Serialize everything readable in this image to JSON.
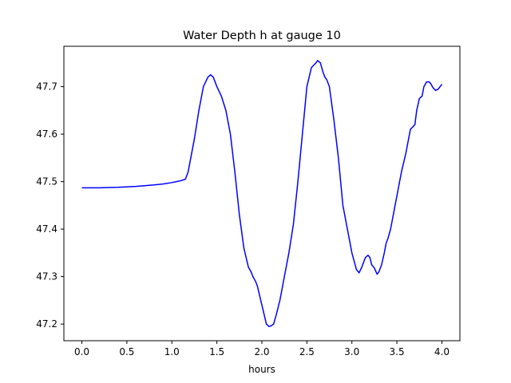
{
  "chart_data": {
    "type": "line",
    "title": "Water Depth h at gauge 10",
    "xlabel": "hours",
    "ylabel": "",
    "xlim": [
      -0.2,
      4.2
    ],
    "ylim": [
      47.165,
      47.785
    ],
    "xticks": [
      0.0,
      0.5,
      1.0,
      1.5,
      2.0,
      2.5,
      3.0,
      3.5,
      4.0
    ],
    "xtick_labels": [
      "0.0",
      "0.5",
      "1.0",
      "1.5",
      "2.0",
      "2.5",
      "3.0",
      "3.5",
      "4.0"
    ],
    "yticks": [
      47.2,
      47.3,
      47.4,
      47.5,
      47.6,
      47.7
    ],
    "ytick_labels": [
      "47.2",
      "47.3",
      "47.4",
      "47.5",
      "47.6",
      "47.7"
    ],
    "grid": false,
    "series": [
      {
        "color": "#0000ff",
        "x": [
          0.0,
          0.2,
          0.4,
          0.6,
          0.8,
          0.9,
          1.0,
          1.05,
          1.1,
          1.15,
          1.18,
          1.2,
          1.25,
          1.3,
          1.35,
          1.4,
          1.43,
          1.46,
          1.5,
          1.55,
          1.6,
          1.65,
          1.7,
          1.75,
          1.8,
          1.85,
          1.88,
          1.9,
          1.93,
          1.95,
          2.0,
          2.05,
          2.08,
          2.1,
          2.13,
          2.16,
          2.2,
          2.25,
          2.3,
          2.35,
          2.4,
          2.45,
          2.5,
          2.55,
          2.6,
          2.62,
          2.65,
          2.68,
          2.7,
          2.72,
          2.75,
          2.8,
          2.85,
          2.9,
          2.95,
          3.0,
          3.05,
          3.08,
          3.11,
          3.13,
          3.15,
          3.18,
          3.2,
          3.22,
          3.25,
          3.28,
          3.3,
          3.33,
          3.36,
          3.38,
          3.4,
          3.43,
          3.46,
          3.5,
          3.55,
          3.6,
          3.65,
          3.7,
          3.72,
          3.75,
          3.78,
          3.8,
          3.83,
          3.86,
          3.88,
          3.9,
          3.93,
          3.96,
          4.0
        ],
        "y": [
          47.487,
          47.487,
          47.488,
          47.49,
          47.493,
          47.495,
          47.498,
          47.5,
          47.502,
          47.505,
          47.52,
          47.54,
          47.59,
          47.65,
          47.7,
          47.72,
          47.725,
          47.72,
          47.7,
          47.68,
          47.65,
          47.6,
          47.52,
          47.43,
          47.36,
          47.32,
          47.31,
          47.3,
          47.29,
          47.28,
          47.24,
          47.2,
          47.195,
          47.196,
          47.2,
          47.22,
          47.25,
          47.3,
          47.35,
          47.41,
          47.5,
          47.6,
          47.7,
          47.74,
          47.75,
          47.755,
          47.75,
          47.73,
          47.72,
          47.715,
          47.7,
          47.63,
          47.55,
          47.45,
          47.4,
          47.35,
          47.315,
          47.308,
          47.32,
          47.33,
          47.34,
          47.345,
          47.34,
          47.325,
          47.318,
          47.305,
          47.31,
          47.325,
          47.35,
          47.37,
          47.38,
          47.4,
          47.43,
          47.47,
          47.52,
          47.56,
          47.61,
          47.62,
          47.65,
          47.675,
          47.68,
          47.7,
          47.71,
          47.71,
          47.705,
          47.698,
          47.692,
          47.695,
          47.705
        ]
      }
    ]
  }
}
